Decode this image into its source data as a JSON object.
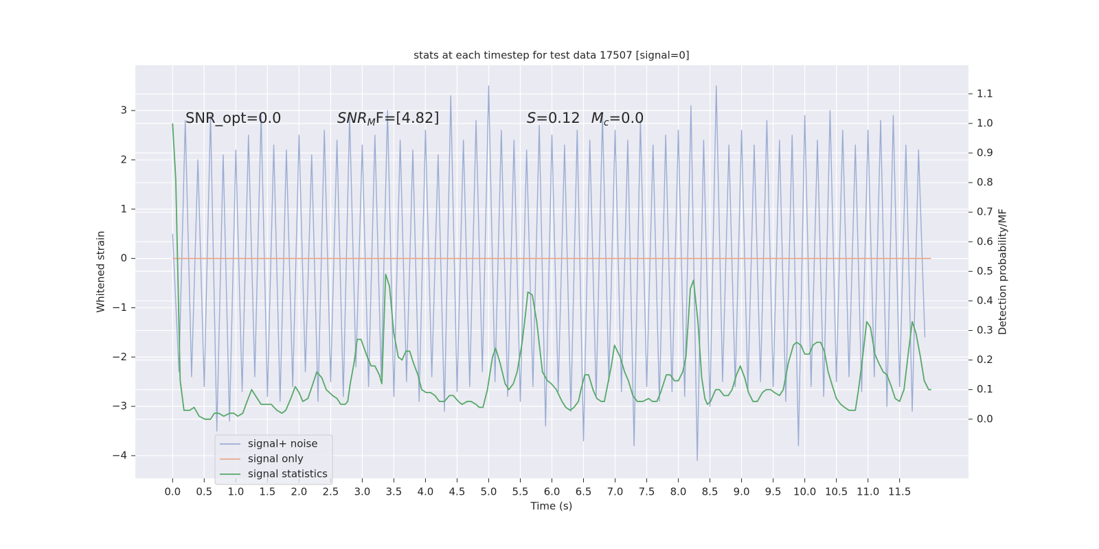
{
  "chart_data": {
    "type": "line",
    "title": "stats at each timestep for test data 17507 [signal=0]",
    "xlabel": "Time (s)",
    "ylabel": "Whitened strain",
    "y2label": "Detection probability/MF",
    "annotations": [
      {
        "parts": [
          "SNR_opt=0.0"
        ]
      },
      {
        "parts": [
          "SNR",
          "M",
          "F=[4.82]"
        ]
      },
      {
        "parts": [
          "S",
          "=0.12",
          "M",
          "c",
          "=0.0"
        ]
      }
    ],
    "xlim": [
      -0.59,
      12.59
    ],
    "xticks": [
      {
        "value": 0,
        "label": "0.0"
      },
      0.5,
      {
        "value": 1,
        "label": "1.0"
      },
      1.5,
      {
        "value": 2,
        "label": "2.0"
      },
      2.5,
      {
        "value": 3,
        "label": "3.0"
      },
      3.5,
      {
        "value": 4,
        "label": "4.0"
      },
      4.5,
      {
        "value": 5,
        "label": "5.0"
      },
      5.5,
      {
        "value": 6,
        "label": "6.0"
      },
      6.5,
      {
        "value": 7,
        "label": "7.0"
      },
      7.5,
      {
        "value": 8,
        "label": "8.0"
      },
      8.5,
      {
        "value": 9,
        "label": "9.0"
      },
      9.5,
      {
        "value": 10,
        "label": "10.0"
      },
      10.5,
      {
        "value": 11,
        "label": "11.0"
      },
      11.5
    ],
    "ylim": [
      -4.46,
      3.92
    ],
    "yticks": [
      {
        "value": -4,
        "label": "−4"
      },
      {
        "value": -3,
        "label": "−3"
      },
      {
        "value": -2,
        "label": "−2"
      },
      {
        "value": -1,
        "label": "−1"
      },
      0,
      1,
      2,
      3
    ],
    "y2lim": [
      -0.2,
      1.197
    ],
    "y2ticks": [
      {
        "value": 0,
        "label": "0.0"
      },
      0.1,
      0.2,
      0.3,
      0.4,
      0.5,
      0.6,
      0.7,
      0.8,
      0.9,
      {
        "value": 1,
        "label": "1.0"
      },
      1.1
    ],
    "grid": true,
    "legend": "lower left",
    "series": [
      {
        "name": "signal+ noise",
        "color": "#9aacd3",
        "x": [
          0.0,
          0.1,
          0.2,
          0.3,
          0.4,
          0.5,
          0.6,
          0.7,
          0.8,
          0.9,
          1.0,
          1.1,
          1.2,
          1.3,
          1.4,
          1.5,
          1.6,
          1.7,
          1.8,
          1.9,
          2.0,
          2.1,
          2.2,
          2.3,
          2.4,
          2.5,
          2.6,
          2.7,
          2.8,
          2.9,
          3.0,
          3.1,
          3.2,
          3.3,
          3.4,
          3.5,
          3.6,
          3.7,
          3.8,
          3.9,
          4.0,
          4.1,
          4.2,
          4.3,
          4.4,
          4.5,
          4.6,
          4.7,
          4.8,
          4.9,
          5.0,
          5.1,
          5.2,
          5.3,
          5.4,
          5.5,
          5.6,
          5.7,
          5.8,
          5.9,
          6.0,
          6.1,
          6.2,
          6.3,
          6.4,
          6.5,
          6.6,
          6.7,
          6.8,
          6.9,
          7.0,
          7.1,
          7.2,
          7.3,
          7.4,
          7.5,
          7.6,
          7.7,
          7.8,
          7.9,
          8.0,
          8.1,
          8.2,
          8.3,
          8.4,
          8.5,
          8.6,
          8.7,
          8.8,
          8.9,
          9.0,
          9.1,
          9.2,
          9.3,
          9.4,
          9.5,
          9.6,
          9.7,
          9.8,
          9.9,
          10.0,
          10.1,
          10.2,
          10.3,
          10.4,
          10.5,
          10.6,
          10.7,
          10.8,
          10.9,
          11.0,
          11.1,
          11.2,
          11.3,
          11.4,
          11.5,
          11.6,
          11.7,
          11.8,
          11.9
        ],
        "values": [
          0.5,
          -2.3,
          2.8,
          -2.4,
          2.0,
          -2.6,
          2.9,
          -3.5,
          2.1,
          -3.3,
          2.2,
          -2.7,
          2.5,
          -2.4,
          2.9,
          -2.8,
          2.3,
          -2.9,
          2.2,
          -2.6,
          2.5,
          -2.3,
          2.1,
          -2.9,
          2.6,
          -2.5,
          2.4,
          -2.8,
          2.9,
          -2.2,
          2.3,
          -2.6,
          2.5,
          -2.4,
          3.0,
          -2.8,
          2.4,
          -2.5,
          2.2,
          -2.9,
          2.6,
          -2.4,
          2.1,
          -3.1,
          3.3,
          -2.7,
          2.4,
          -2.6,
          2.8,
          -2.3,
          3.5,
          -2.5,
          2.6,
          -2.8,
          2.4,
          -2.9,
          2.2,
          -2.6,
          2.7,
          -3.4,
          2.5,
          -2.7,
          2.3,
          -3.1,
          2.6,
          -3.7,
          2.4,
          -2.8,
          2.9,
          -2.5,
          2.6,
          -2.7,
          2.4,
          -3.8,
          2.8,
          -2.6,
          2.3,
          -2.9,
          2.5,
          -2.7,
          2.6,
          -2.8,
          3.1,
          -4.1,
          2.4,
          -3.0,
          3.5,
          -2.5,
          2.3,
          -2.6,
          2.6,
          -2.7,
          2.3,
          -2.5,
          2.8,
          -2.6,
          2.4,
          -2.9,
          2.5,
          -3.8,
          2.9,
          -2.6,
          2.4,
          -2.8,
          3.0,
          -2.5,
          2.6,
          -2.4,
          2.3,
          -2.7,
          2.6,
          -2.4,
          2.8,
          -3.0,
          2.9,
          -2.6,
          2.3,
          -3.1,
          2.2,
          -1.6
        ]
      },
      {
        "name": "signal only",
        "color": "#e8a98a",
        "x": [
          0,
          12
        ],
        "values": [
          0,
          0
        ]
      },
      {
        "name": "signal statistics",
        "color": "#55a868",
        "axis": "y2",
        "x": [
          0.0,
          0.05,
          0.12,
          0.18,
          0.27,
          0.34,
          0.42,
          0.51,
          0.6,
          0.66,
          0.73,
          0.81,
          0.9,
          0.97,
          1.03,
          1.11,
          1.16,
          1.25,
          1.31,
          1.4,
          1.48,
          1.56,
          1.65,
          1.73,
          1.79,
          1.87,
          1.94,
          2.0,
          2.06,
          2.14,
          2.22,
          2.28,
          2.36,
          2.43,
          2.53,
          2.6,
          2.66,
          2.73,
          2.77,
          2.81,
          2.87,
          2.92,
          2.98,
          3.03,
          3.08,
          3.14,
          3.2,
          3.27,
          3.31,
          3.37,
          3.43,
          3.5,
          3.57,
          3.63,
          3.69,
          3.75,
          3.81,
          3.88,
          3.94,
          4.01,
          4.08,
          4.15,
          4.22,
          4.3,
          4.38,
          4.44,
          4.52,
          4.58,
          4.66,
          4.72,
          4.8,
          4.85,
          4.91,
          4.98,
          5.06,
          5.11,
          5.18,
          5.26,
          5.32,
          5.39,
          5.45,
          5.53,
          5.59,
          5.62,
          5.69,
          5.76,
          5.85,
          5.93,
          5.99,
          6.07,
          6.16,
          6.22,
          6.29,
          6.35,
          6.42,
          6.46,
          6.52,
          6.58,
          6.65,
          6.71,
          6.78,
          6.83,
          6.94,
          6.99,
          7.08,
          7.15,
          7.21,
          7.28,
          7.35,
          7.44,
          7.53,
          7.59,
          7.66,
          7.72,
          7.81,
          7.87,
          7.94,
          8.0,
          8.07,
          8.12,
          8.19,
          8.24,
          8.31,
          8.37,
          8.42,
          8.46,
          8.51,
          8.59,
          8.65,
          8.72,
          8.79,
          8.85,
          8.92,
          8.98,
          9.05,
          9.11,
          9.18,
          9.25,
          9.33,
          9.39,
          9.46,
          9.52,
          9.6,
          9.66,
          9.74,
          9.82,
          9.87,
          9.94,
          10.0,
          10.07,
          10.13,
          10.19,
          10.25,
          10.31,
          10.37,
          10.44,
          10.5,
          10.57,
          10.63,
          10.7,
          10.76,
          10.8,
          10.85,
          10.91,
          10.98,
          11.04,
          11.11,
          11.17,
          11.24,
          11.3,
          11.37,
          11.43,
          11.5,
          11.57,
          11.63,
          11.7,
          11.76,
          11.83,
          11.89,
          11.96,
          12.0
        ],
        "values": [
          1.0,
          0.81,
          0.13,
          0.03,
          0.03,
          0.04,
          0.01,
          0.0,
          0.0,
          0.02,
          0.02,
          0.01,
          0.02,
          0.02,
          0.01,
          0.02,
          0.05,
          0.1,
          0.08,
          0.05,
          0.05,
          0.05,
          0.03,
          0.02,
          0.03,
          0.07,
          0.11,
          0.09,
          0.06,
          0.07,
          0.12,
          0.16,
          0.14,
          0.1,
          0.08,
          0.07,
          0.05,
          0.05,
          0.06,
          0.12,
          0.19,
          0.27,
          0.27,
          0.24,
          0.21,
          0.18,
          0.18,
          0.15,
          0.12,
          0.49,
          0.45,
          0.29,
          0.21,
          0.2,
          0.23,
          0.23,
          0.19,
          0.15,
          0.1,
          0.09,
          0.09,
          0.08,
          0.06,
          0.06,
          0.08,
          0.08,
          0.06,
          0.05,
          0.06,
          0.06,
          0.05,
          0.04,
          0.04,
          0.1,
          0.21,
          0.24,
          0.19,
          0.12,
          0.1,
          0.12,
          0.16,
          0.26,
          0.37,
          0.43,
          0.42,
          0.33,
          0.16,
          0.13,
          0.12,
          0.1,
          0.06,
          0.04,
          0.03,
          0.04,
          0.06,
          0.1,
          0.15,
          0.15,
          0.1,
          0.07,
          0.06,
          0.06,
          0.18,
          0.25,
          0.21,
          0.16,
          0.13,
          0.08,
          0.06,
          0.06,
          0.07,
          0.06,
          0.06,
          0.09,
          0.15,
          0.15,
          0.13,
          0.13,
          0.16,
          0.21,
          0.44,
          0.47,
          0.33,
          0.14,
          0.07,
          0.05,
          0.06,
          0.1,
          0.1,
          0.08,
          0.08,
          0.1,
          0.15,
          0.18,
          0.14,
          0.09,
          0.06,
          0.06,
          0.09,
          0.1,
          0.1,
          0.09,
          0.08,
          0.1,
          0.19,
          0.25,
          0.26,
          0.25,
          0.22,
          0.22,
          0.25,
          0.26,
          0.26,
          0.23,
          0.16,
          0.11,
          0.07,
          0.05,
          0.04,
          0.03,
          0.03,
          0.03,
          0.1,
          0.2,
          0.33,
          0.31,
          0.22,
          0.19,
          0.16,
          0.15,
          0.11,
          0.07,
          0.06,
          0.1,
          0.21,
          0.33,
          0.29,
          0.21,
          0.13,
          0.1,
          0.1
        ]
      }
    ]
  }
}
